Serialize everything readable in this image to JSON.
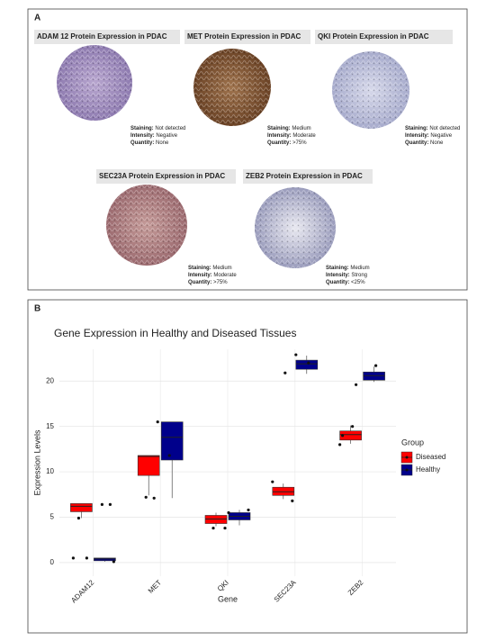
{
  "panel_a": {
    "label": "A",
    "tissues": [
      {
        "title": "ADAM 12 Protein Expression in PDAC",
        "details": [
          {
            "label": "Staining:",
            "value": "Not detected"
          },
          {
            "label": "Intensity:",
            "value": "Negative"
          },
          {
            "label": "Quantity:",
            "value": "None"
          }
        ]
      },
      {
        "title": "MET Protein Expression in PDAC",
        "details": [
          {
            "label": "Staining:",
            "value": "Medium"
          },
          {
            "label": "Intensity:",
            "value": "Moderate"
          },
          {
            "label": "Quantity:",
            "value": ">75%"
          }
        ]
      },
      {
        "title": "QKI Protein Expression in PDAC",
        "details": [
          {
            "label": "Staining:",
            "value": "Not detected"
          },
          {
            "label": "Intensity:",
            "value": "Negative"
          },
          {
            "label": "Quantity:",
            "value": "None"
          }
        ]
      },
      {
        "title": "SEC23A Protein Expression in PDAC",
        "details": [
          {
            "label": "Staining:",
            "value": "Medium"
          },
          {
            "label": "Intensity:",
            "value": "Moderate"
          },
          {
            "label": "Quantity:",
            "value": ">75%"
          }
        ]
      },
      {
        "title": "ZEB2 Protein Expression in PDAC",
        "details": [
          {
            "label": "Staining:",
            "value": "Medium"
          },
          {
            "label": "Intensity:",
            "value": "Strong"
          },
          {
            "label": "Quantity:",
            "value": "<25%"
          }
        ]
      }
    ]
  },
  "chart_data": {
    "type": "boxplot",
    "panel_label": "B",
    "title": "Gene Expression in Healthy and Diseased Tissues",
    "x_label": "Gene",
    "y_label": "Expression Levels",
    "categories": [
      "ADAM12",
      "MET",
      "QKI",
      "SEC23A",
      "ZEB2"
    ],
    "ylim": [
      -1.5,
      23.5
    ],
    "yticks": [
      0,
      5,
      10,
      15,
      20
    ],
    "grid": true,
    "legend_title": "Group",
    "legend_position": "right",
    "series": [
      {
        "name": "Diseased",
        "color": "#ff0000",
        "boxes": [
          {
            "min": 4.9,
            "q1": 5.6,
            "median": 6.2,
            "q3": 6.5,
            "max": 6.5,
            "points": [
              0.5,
              0.5,
              4.9
            ]
          },
          {
            "min": 7.4,
            "q1": 9.6,
            "median": 11.7,
            "q3": 11.8,
            "max": 11.8,
            "points": [
              7.1,
              7.2,
              15.5
            ]
          },
          {
            "min": 4.0,
            "q1": 4.3,
            "median": 4.8,
            "q3": 5.2,
            "max": 5.5,
            "points": [
              3.8,
              3.8
            ]
          },
          {
            "min": 7.0,
            "q1": 7.4,
            "median": 7.8,
            "q3": 8.3,
            "max": 8.7,
            "points": [
              6.8,
              8.9,
              20.9
            ]
          },
          {
            "min": 13.1,
            "q1": 13.5,
            "median": 14.1,
            "q3": 14.5,
            "max": 15.1,
            "points": [
              13.0,
              15.0,
              14.0,
              19.6
            ]
          }
        ]
      },
      {
        "name": "Healthy",
        "color": "#00008b",
        "boxes": [
          {
            "min": 0.1,
            "q1": 0.2,
            "median": 0.4,
            "q3": 0.5,
            "max": 0.5,
            "points": [
              6.4,
              6.4,
              0.1
            ]
          },
          {
            "min": 7.1,
            "q1": 11.3,
            "median": 13.8,
            "q3": 15.5,
            "max": 15.5,
            "points": [
              11.8
            ]
          },
          {
            "min": 4.1,
            "q1": 4.7,
            "median": 5.1,
            "q3": 5.5,
            "max": 5.8,
            "points": [
              5.8,
              5.5
            ]
          },
          {
            "min": 20.8,
            "q1": 21.3,
            "median": 21.9,
            "q3": 22.3,
            "max": 22.8,
            "points": [
              22.9,
              22.0
            ]
          },
          {
            "min": 19.9,
            "q1": 20.1,
            "median": 20.6,
            "q3": 21.0,
            "max": 21.6,
            "points": [
              21.7
            ]
          }
        ]
      }
    ]
  }
}
